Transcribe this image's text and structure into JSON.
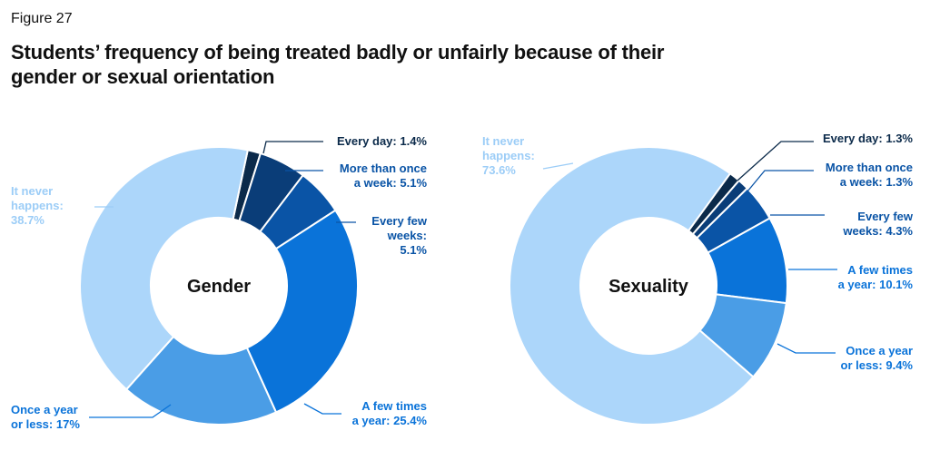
{
  "figure_label": "Figure 27",
  "title": "Students’ frequency of being treated badly or unfairly because of their gender or sexual orientation",
  "colors": {
    "every_day": "#0b2a4a",
    "more_than_once_a_week": "#0a3d78",
    "every_few_weeks": "#0a54a6",
    "a_few_times_a_year": "#0a73d9",
    "once_a_year_or_less": "#4a9de6",
    "it_never_happens": "#acd6fa",
    "never_label_text": "#9ccdf7"
  },
  "chart_data": [
    {
      "type": "pie",
      "center_label": "Gender",
      "categories": [
        "Every day",
        "More than once a week",
        "Every few weeks",
        "A few times a year",
        "Once a year or less",
        "It never happens"
      ],
      "values": [
        1.4,
        5.1,
        5.1,
        25.4,
        17,
        38.7
      ],
      "labels": [
        [
          "Every day: 1.4%"
        ],
        [
          "More than once",
          "a week: 5.1%"
        ],
        [
          "Every few",
          "weeks:",
          "5.1%"
        ],
        [
          "A few times",
          "a year: 25.4%"
        ],
        [
          "Once a year",
          "or less: 17%"
        ],
        [
          "It never",
          "happens:",
          "38.7%"
        ]
      ]
    },
    {
      "type": "pie",
      "center_label": "Sexuality",
      "categories": [
        "Every day",
        "More than once a week",
        "Every few weeks",
        "A few times a year",
        "Once a year or less",
        "It never happens"
      ],
      "values": [
        1.3,
        1.3,
        4.3,
        10.1,
        9.4,
        73.6
      ],
      "labels": [
        [
          "Every day: 1.3%"
        ],
        [
          "More than once",
          "a week: 1.3%"
        ],
        [
          "Every few",
          "weeks: 4.3%"
        ],
        [
          "A few times",
          "a year: 10.1%"
        ],
        [
          "Once a year",
          "or less: 9.4%"
        ],
        [
          "It never",
          "happens:",
          "73.6%"
        ]
      ]
    }
  ]
}
